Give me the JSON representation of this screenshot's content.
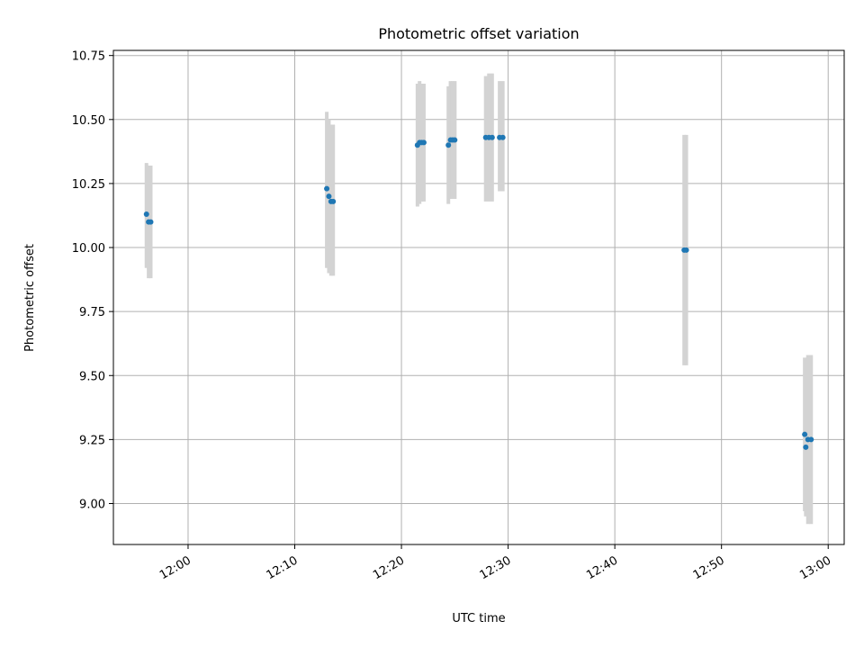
{
  "chart_data": {
    "type": "scatter",
    "title": "Photometric offset variation",
    "xlabel": "UTC time",
    "ylabel": "Photometric offset",
    "xlim": [
      "11:53",
      "13:01.5"
    ],
    "ylim": [
      8.84,
      10.77
    ],
    "x_ticks": [
      "12:00",
      "12:10",
      "12:20",
      "12:30",
      "12:40",
      "12:50",
      "13:00"
    ],
    "y_ticks": [
      "9.00",
      "9.25",
      "9.50",
      "9.75",
      "10.00",
      "10.25",
      "10.50",
      "10.75"
    ],
    "grid": true,
    "legend": "none",
    "colors": {
      "points": "#1f77b4",
      "errorbars": "#d3d3d3",
      "grid": "#b0b0b0"
    },
    "series": [
      {
        "points": [
          {
            "t": "11:56.1",
            "y": 10.13,
            "lo": 9.92,
            "hi": 10.33
          },
          {
            "t": "11:56.3",
            "y": 10.1,
            "lo": 9.88,
            "hi": 10.32
          },
          {
            "t": "11:56.5",
            "y": 10.1,
            "lo": 9.88,
            "hi": 10.32
          },
          {
            "t": "12:13.0",
            "y": 10.23,
            "lo": 9.92,
            "hi": 10.53
          },
          {
            "t": "12:13.2",
            "y": 10.2,
            "lo": 9.9,
            "hi": 10.5
          },
          {
            "t": "12:13.4",
            "y": 10.18,
            "lo": 9.89,
            "hi": 10.48
          },
          {
            "t": "12:13.6",
            "y": 10.18,
            "lo": 9.89,
            "hi": 10.48
          },
          {
            "t": "12:21.5",
            "y": 10.4,
            "lo": 10.16,
            "hi": 10.64
          },
          {
            "t": "12:21.7",
            "y": 10.41,
            "lo": 10.17,
            "hi": 10.65
          },
          {
            "t": "12:21.9",
            "y": 10.41,
            "lo": 10.18,
            "hi": 10.64
          },
          {
            "t": "12:22.1",
            "y": 10.41,
            "lo": 10.18,
            "hi": 10.64
          },
          {
            "t": "12:24.4",
            "y": 10.4,
            "lo": 10.17,
            "hi": 10.63
          },
          {
            "t": "12:24.6",
            "y": 10.42,
            "lo": 10.19,
            "hi": 10.65
          },
          {
            "t": "12:24.8",
            "y": 10.42,
            "lo": 10.19,
            "hi": 10.65
          },
          {
            "t": "12:25.0",
            "y": 10.42,
            "lo": 10.19,
            "hi": 10.65
          },
          {
            "t": "12:27.9",
            "y": 10.43,
            "lo": 10.18,
            "hi": 10.67
          },
          {
            "t": "12:28.2",
            "y": 10.43,
            "lo": 10.18,
            "hi": 10.68
          },
          {
            "t": "12:28.5",
            "y": 10.43,
            "lo": 10.18,
            "hi": 10.68
          },
          {
            "t": "12:29.2",
            "y": 10.43,
            "lo": 10.22,
            "hi": 10.65
          },
          {
            "t": "12:29.5",
            "y": 10.43,
            "lo": 10.22,
            "hi": 10.65
          },
          {
            "t": "12:46.5",
            "y": 9.99,
            "lo": 9.54,
            "hi": 10.44
          },
          {
            "t": "12:46.7",
            "y": 9.99,
            "lo": 9.54,
            "hi": 10.44
          },
          {
            "t": "12:57.8",
            "y": 9.27,
            "lo": 8.97,
            "hi": 9.57
          },
          {
            "t": "12:57.9",
            "y": 9.22,
            "lo": 8.95,
            "hi": 9.56
          },
          {
            "t": "12:58.1",
            "y": 9.25,
            "lo": 8.92,
            "hi": 9.58
          },
          {
            "t": "12:58.4",
            "y": 9.25,
            "lo": 8.92,
            "hi": 9.58
          }
        ]
      }
    ]
  }
}
